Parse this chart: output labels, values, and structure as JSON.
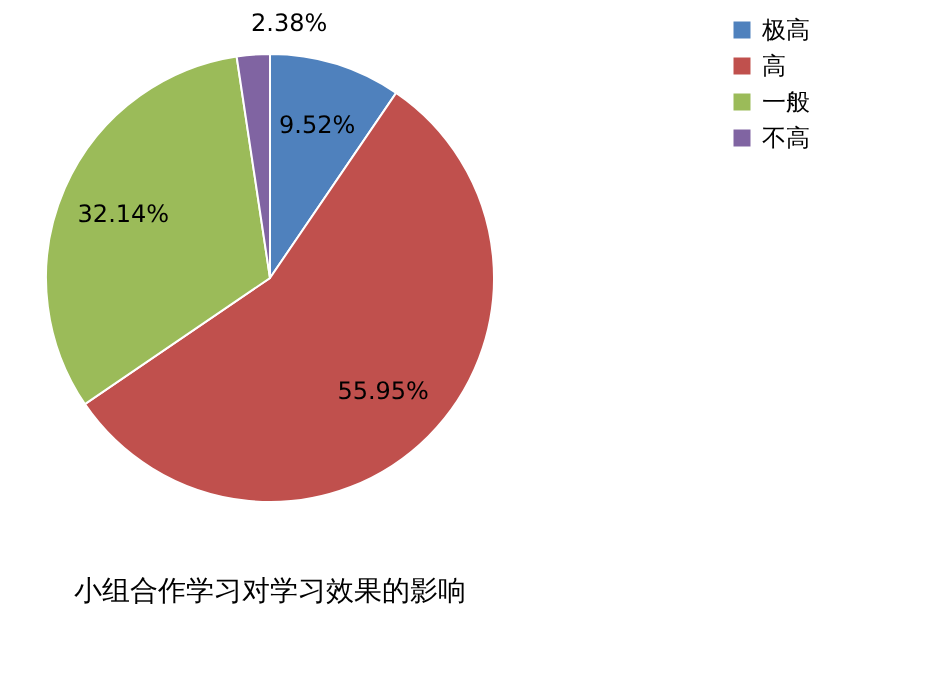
{
  "chart_data": {
    "type": "pie",
    "title": "小组合作学习对学习效果的影响",
    "categories": [
      "极高",
      "高",
      "一般",
      "不高"
    ],
    "values": [
      9.52,
      55.95,
      32.14,
      2.38
    ],
    "colors": [
      "#4f81bd",
      "#c0504d",
      "#9bbb59",
      "#8064a2"
    ],
    "value_labels": [
      "9.52%",
      "55.95%",
      "32.14%",
      "2.38%"
    ],
    "legend": "right"
  }
}
